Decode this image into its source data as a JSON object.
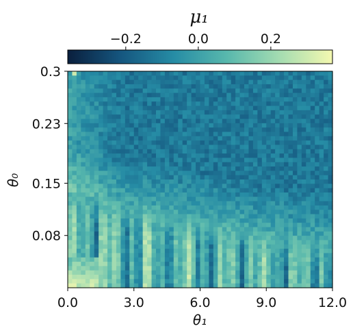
{
  "chart_data": {
    "type": "heatmap",
    "title": "",
    "xlabel": "θ₁",
    "ylabel": "θ₀",
    "colorbar": {
      "label": "μ₁",
      "range": [
        -0.36,
        0.37
      ],
      "ticks": [
        -0.2,
        0.0,
        0.2
      ],
      "tick_labels": [
        "−0.2",
        "0.0",
        "0.2"
      ],
      "position": "top",
      "colormap": "YlGnBu_r",
      "colors": [
        "#0a1f3d",
        "#15567f",
        "#268ca5",
        "#58b8ad",
        "#a4dcb1",
        "#f4f8b0"
      ]
    },
    "x_range": [
      0.0,
      12.0
    ],
    "y_range": [
      0.01,
      0.3
    ],
    "x_ticks": [
      0.0,
      3.0,
      6.0,
      9.0,
      12.0
    ],
    "x_tick_labels": [
      "0.0",
      "3.0",
      "6.0",
      "9.0",
      "12.0"
    ],
    "y_ticks": [
      0.3,
      0.23,
      0.15,
      0.08
    ],
    "y_tick_labels": [
      "0.3",
      "0.23",
      "0.15",
      "0.08"
    ],
    "grid": "60 columns × 50 rows",
    "pattern": {
      "upper_region_mean": -0.12,
      "boundary_theta0_at_theta1_0": 0.14,
      "boundary_theta0_at_theta1_12": 0.07,
      "lower_region": "alternating vertical stripes in θ₁, values from −0.34 to +0.30",
      "bottom_left_corner_max": 0.34
    }
  }
}
